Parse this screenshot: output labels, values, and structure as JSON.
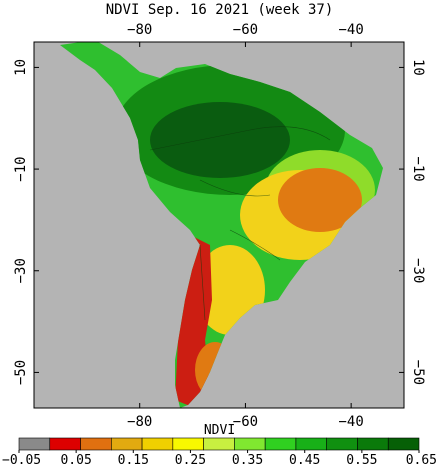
{
  "title": "NDVI Sep. 16 2021 (week 37)",
  "map": {
    "ocean_color": "#b4b4b4",
    "land_colors": {
      "dense": "#0a5c10",
      "forest": "#138a13",
      "green": "#2fbf2f",
      "light_green": "#8fdc2a",
      "yellow": "#f2d21a",
      "orange": "#e07a12",
      "red": "#cc1e12"
    },
    "longitudes": [
      {
        "value": -80,
        "label": "−80"
      },
      {
        "value": -60,
        "label": "−60"
      },
      {
        "value": -40,
        "label": "−40"
      }
    ],
    "latitudes": [
      {
        "value": 10,
        "label": "10"
      },
      {
        "value": -10,
        "label": "−10"
      },
      {
        "value": -30,
        "label": "−30"
      },
      {
        "value": -50,
        "label": "−50"
      }
    ],
    "lon_range": [
      -100,
      -30
    ],
    "lat_range": [
      -57,
      15
    ]
  },
  "colorbar": {
    "label": "NDVI",
    "colors": [
      "#8a8a8a",
      "#dd0000",
      "#e07010",
      "#e2aa10",
      "#f0d000",
      "#f8f800",
      "#c8f040",
      "#80e830",
      "#30d020",
      "#18b018",
      "#109010",
      "#0a7a0a",
      "#066006"
    ],
    "ticks": [
      "−0.05",
      "0.05",
      "0.15",
      "0.25",
      "0.35",
      "0.45",
      "0.55",
      "0.65"
    ]
  }
}
